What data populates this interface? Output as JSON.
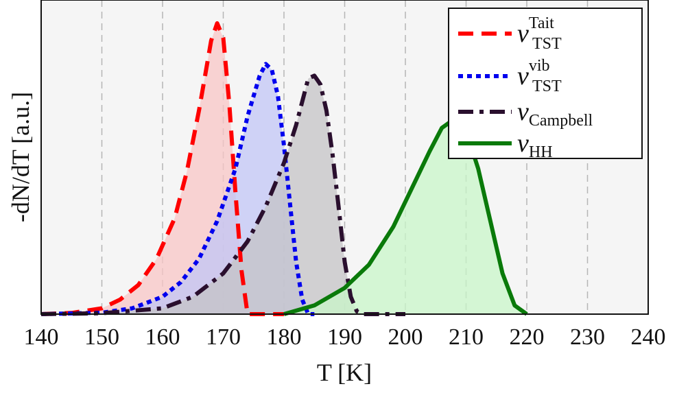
{
  "chart_data": {
    "type": "area",
    "xlabel": "T [K]",
    "ylabel": "-dN/dT [a.u.]",
    "xlim": [
      140,
      240
    ],
    "ylim": [
      0,
      1.08
    ],
    "xticks": [
      "140",
      "150",
      "160",
      "170",
      "180",
      "190",
      "200",
      "210",
      "220",
      "230",
      "240"
    ],
    "grid": true,
    "legend_position": "top-right",
    "series": [
      {
        "name": "ν_TST^Tait",
        "legend_base": "ν",
        "legend_sub": "TST",
        "legend_sup": "Tait",
        "color": "#ff0000",
        "fill": "#f8c6c6",
        "dash": "dashed",
        "x": [
          140,
          145,
          150,
          153,
          156,
          159,
          162,
          164,
          166,
          167,
          168,
          169,
          170,
          171,
          172,
          173,
          174,
          176,
          178,
          180
        ],
        "y": [
          0.0,
          0.004,
          0.02,
          0.05,
          0.1,
          0.19,
          0.33,
          0.49,
          0.7,
          0.82,
          0.94,
          1.0,
          0.95,
          0.72,
          0.42,
          0.15,
          0.0,
          0.0,
          0.0,
          0.0
        ]
      },
      {
        "name": "ν_TST^vib",
        "legend_base": "ν",
        "legend_sub": "TST",
        "legend_sup": "vib",
        "color": "#0000ee",
        "fill": "#c2c6f5",
        "dash": "dotted",
        "x": [
          140,
          150,
          155,
          160,
          163,
          166,
          169,
          172,
          174,
          176,
          177,
          178,
          179,
          180,
          181,
          182,
          183,
          184,
          185
        ],
        "y": [
          0.0,
          0.005,
          0.02,
          0.06,
          0.11,
          0.19,
          0.32,
          0.5,
          0.68,
          0.82,
          0.86,
          0.84,
          0.75,
          0.58,
          0.38,
          0.18,
          0.05,
          0.0,
          0.0
        ]
      },
      {
        "name": "ν_Campbell",
        "legend_base": "ν",
        "legend_sub": "Campbell",
        "legend_sup": "",
        "color": "#2a0f2e",
        "fill": "#c4c3c6",
        "dash": "dashdot",
        "x": [
          140,
          150,
          160,
          165,
          170,
          174,
          177,
          180,
          182,
          184,
          185,
          186,
          187,
          188,
          189,
          190,
          191,
          192,
          193,
          200
        ],
        "y": [
          0.0,
          0.003,
          0.02,
          0.06,
          0.14,
          0.25,
          0.37,
          0.52,
          0.65,
          0.81,
          0.82,
          0.79,
          0.7,
          0.55,
          0.37,
          0.18,
          0.06,
          0.01,
          0.0,
          0.0
        ]
      },
      {
        "name": "ν_HH",
        "legend_base": "ν",
        "legend_sub": "HH",
        "legend_sup": "",
        "color": "#0a7a0a",
        "fill": "#c8f5c8",
        "dash": "solid",
        "x": [
          180,
          185,
          190,
          194,
          198,
          201,
          204,
          206,
          208,
          210,
          212,
          214,
          216,
          218,
          220
        ],
        "y": [
          0.0,
          0.03,
          0.09,
          0.17,
          0.3,
          0.43,
          0.56,
          0.64,
          0.67,
          0.63,
          0.5,
          0.32,
          0.14,
          0.03,
          0.0
        ]
      }
    ]
  }
}
